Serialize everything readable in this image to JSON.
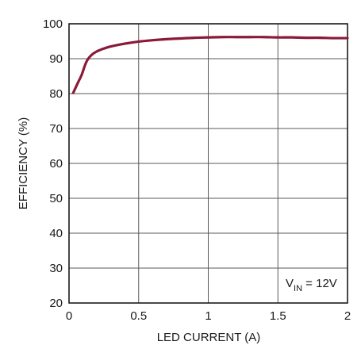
{
  "chart_data": {
    "type": "line",
    "xlabel": "LED CURRENT (A)",
    "ylabel": "EFFICIENCY (%)",
    "xlim": [
      0,
      2
    ],
    "ylim": [
      20,
      100
    ],
    "xticks": [
      0,
      0.5,
      1,
      1.5,
      2
    ],
    "xtick_labels": [
      "0",
      "0.5",
      "1",
      "1.5",
      "2"
    ],
    "yticks": [
      20,
      30,
      40,
      50,
      60,
      70,
      80,
      90,
      100
    ],
    "ytick_labels": [
      "20",
      "30",
      "40",
      "50",
      "60",
      "70",
      "80",
      "90",
      "100"
    ],
    "grid": true,
    "annotation": {
      "main": "V",
      "sub": "IN",
      "rest": " = 12V"
    },
    "series": [
      {
        "color": "#8b1a3a",
        "x": [
          0.03,
          0.06,
          0.09,
          0.11,
          0.13,
          0.16,
          0.2,
          0.25,
          0.3,
          0.4,
          0.5,
          0.6,
          0.7,
          0.8,
          0.9,
          1.0,
          1.1,
          1.2,
          1.3,
          1.4,
          1.5,
          1.6,
          1.7,
          1.8,
          1.9,
          2.0
        ],
        "y": [
          80.2,
          82.8,
          85.3,
          87.6,
          89.5,
          91.0,
          92.1,
          92.9,
          93.5,
          94.3,
          94.9,
          95.3,
          95.6,
          95.8,
          96.0,
          96.1,
          96.2,
          96.2,
          96.2,
          96.2,
          96.1,
          96.1,
          96.0,
          96.0,
          95.9,
          95.9
        ]
      }
    ]
  }
}
